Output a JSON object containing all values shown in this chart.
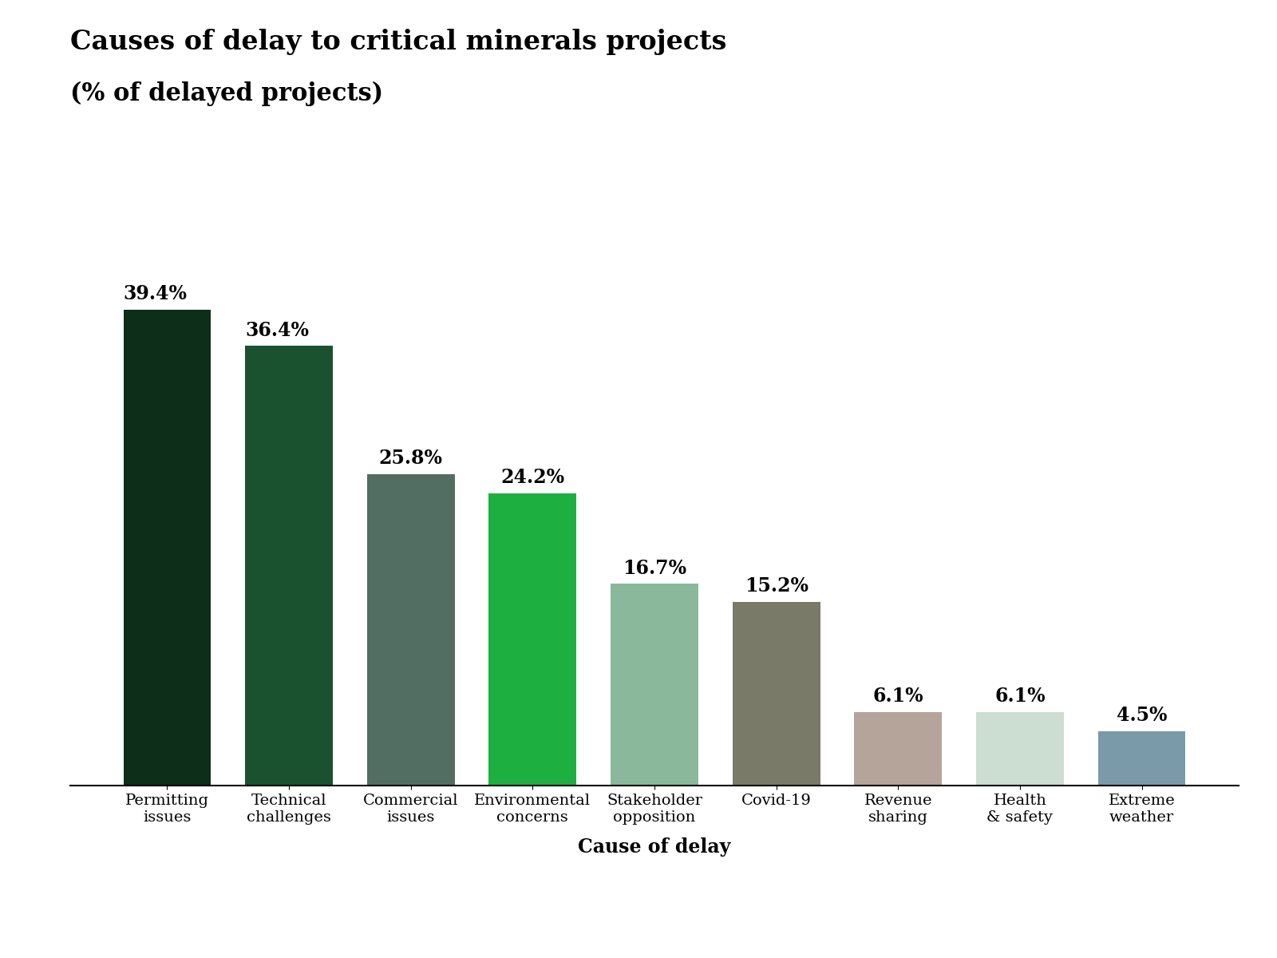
{
  "title_line1": "Causes of delay to critical minerals projects",
  "title_line2": "(% of delayed projects)",
  "xlabel": "Cause of delay",
  "categories": [
    "Permitting\nissues",
    "Technical\nchallenges",
    "Commercial\nissues",
    "Environmental\nconcerns",
    "Stakeholder\nopposition",
    "Covid-19",
    "Revenue\nsharing",
    "Health\n& safety",
    "Extreme\nweather"
  ],
  "values": [
    39.4,
    36.4,
    25.8,
    24.2,
    16.7,
    15.2,
    6.1,
    6.1,
    4.5
  ],
  "bar_colors": [
    "#0d2e18",
    "#1a5230",
    "#526e62",
    "#1db040",
    "#8ab89a",
    "#7a7a68",
    "#b5a49a",
    "#ccddd2",
    "#7a9aaa"
  ],
  "value_labels": [
    "39.4%",
    "36.4%",
    "25.8%",
    "24.2%",
    "16.7%",
    "15.2%",
    "6.1%",
    "6.1%",
    "4.5%"
  ],
  "ylim": [
    0,
    46
  ],
  "background_color": "#ffffff",
  "bar_width": 0.72,
  "title_fontsize": 24,
  "label_fontsize": 17,
  "tick_fontsize": 14,
  "value_fontsize": 17
}
